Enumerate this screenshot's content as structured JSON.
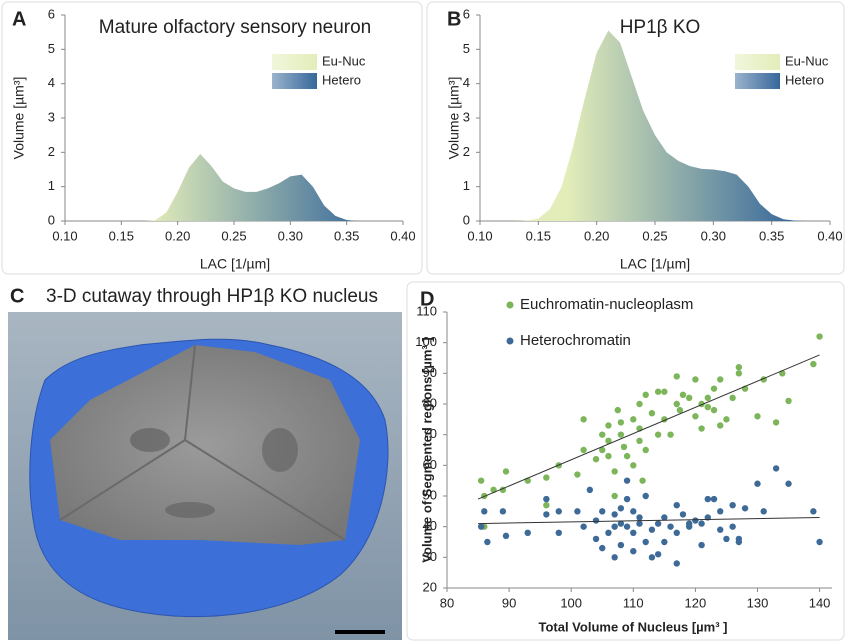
{
  "chart_data": [
    {
      "type": "area",
      "label": "A",
      "title": "Mature olfactory sensory neuron",
      "xlabel": "LAC [1/µm]",
      "ylabel": "Volume [µm³]",
      "x": [
        0.1,
        0.11,
        0.12,
        0.13,
        0.14,
        0.15,
        0.16,
        0.17,
        0.18,
        0.19,
        0.2,
        0.21,
        0.22,
        0.23,
        0.24,
        0.25,
        0.26,
        0.27,
        0.28,
        0.29,
        0.3,
        0.31,
        0.32,
        0.33,
        0.34,
        0.35,
        0.36,
        0.37,
        0.38,
        0.39,
        0.4
      ],
      "values": [
        0,
        0,
        0,
        0,
        0,
        0,
        0,
        0,
        0.02,
        0.25,
        0.85,
        1.55,
        1.95,
        1.6,
        1.15,
        0.95,
        0.85,
        0.85,
        0.95,
        1.1,
        1.3,
        1.35,
        1.0,
        0.45,
        0.15,
        0.03,
        0,
        0,
        0,
        0,
        0
      ],
      "legend": [
        "Eu-Nuc",
        "Hetero"
      ],
      "gradient": [
        "#e2edb9",
        "#36679a"
      ],
      "xlim": [
        0.1,
        0.4
      ],
      "ylim": [
        0,
        6
      ],
      "xticks": [
        {
          "value": 0.1,
          "label": "0.10"
        },
        {
          "value": 0.15,
          "label": "0.15"
        },
        {
          "value": 0.2,
          "label": "0.20"
        },
        {
          "value": 0.25,
          "label": "0.25"
        },
        {
          "value": 0.3,
          "label": "0.30"
        },
        {
          "value": 0.35,
          "label": "0.35"
        },
        {
          "value": 0.4,
          "label": "0.40"
        }
      ],
      "yticks": [
        0,
        1,
        2,
        3,
        4,
        5,
        6
      ]
    },
    {
      "type": "area",
      "label": "B",
      "title": "HP1β KO",
      "xlabel": "LAC [1/µm]",
      "ylabel": "Volume [µm³]",
      "x": [
        0.1,
        0.11,
        0.12,
        0.13,
        0.14,
        0.15,
        0.16,
        0.17,
        0.18,
        0.19,
        0.2,
        0.21,
        0.22,
        0.23,
        0.24,
        0.25,
        0.26,
        0.27,
        0.28,
        0.29,
        0.3,
        0.31,
        0.32,
        0.33,
        0.34,
        0.35,
        0.36,
        0.37,
        0.38,
        0.39,
        0.4
      ],
      "values": [
        0,
        0,
        0,
        0,
        0.01,
        0.07,
        0.35,
        1.0,
        2.2,
        3.6,
        4.9,
        5.55,
        5.2,
        4.2,
        3.2,
        2.5,
        2.0,
        1.75,
        1.6,
        1.52,
        1.5,
        1.45,
        1.35,
        1.0,
        0.5,
        0.2,
        0.05,
        0.01,
        0,
        0,
        0
      ],
      "legend": [
        "Eu-Nuc",
        "Hetero"
      ],
      "gradient": [
        "#e2edb9",
        "#36679a"
      ],
      "xlim": [
        0.1,
        0.4
      ],
      "ylim": [
        0,
        6
      ],
      "xticks": [
        {
          "value": 0.1,
          "label": "0.10"
        },
        {
          "value": 0.15,
          "label": "0.15"
        },
        {
          "value": 0.2,
          "label": "0.20"
        },
        {
          "value": 0.25,
          "label": "0.25"
        },
        {
          "value": 0.3,
          "label": "0.30"
        },
        {
          "value": 0.35,
          "label": "0.35"
        },
        {
          "value": 0.4,
          "label": "0.40"
        }
      ],
      "yticks": [
        0,
        1,
        2,
        3,
        4,
        5,
        6
      ]
    },
    {
      "type": "scatter",
      "label": "D",
      "xlabel": "Total Volume of Nucleus [µm³ ]",
      "ylabel": "Volume of Segmented regions [µm³ ]",
      "series": [
        {
          "name": "Euchromatin-nucleoplasm",
          "color": "#7cb55a",
          "x": [
            85.5,
            86,
            86,
            87.5,
            89.5,
            89,
            93,
            96,
            96,
            98,
            101,
            102,
            102,
            104,
            105,
            105,
            106,
            106,
            106,
            107,
            107,
            107.5,
            108,
            108,
            108.5,
            109,
            110,
            110,
            111,
            111,
            111,
            111.5,
            112,
            112,
            113,
            114,
            114,
            115,
            115,
            116,
            117,
            117,
            117.5,
            118,
            119,
            120,
            120,
            121,
            121,
            122,
            122,
            123,
            123,
            124,
            124,
            125,
            126,
            127,
            127,
            128,
            130,
            131,
            133,
            134,
            135,
            139,
            140
          ],
          "values": [
            55,
            40,
            50,
            52,
            58,
            52,
            55,
            47,
            56,
            60,
            57,
            75,
            65,
            62,
            70,
            65,
            63,
            68,
            73,
            58,
            50,
            78,
            70,
            74,
            66,
            63,
            60,
            75,
            72,
            68,
            80,
            55,
            83,
            65,
            77,
            84,
            70,
            84,
            75,
            70,
            89,
            80,
            78,
            83,
            82,
            88,
            76,
            72,
            80,
            79,
            82,
            85,
            78,
            88,
            73,
            75,
            82,
            92,
            90,
            85,
            76,
            88,
            74,
            90,
            81,
            93,
            102
          ]
        },
        {
          "name": "Heterochromatin",
          "color": "#3e6a98",
          "x": [
            85.5,
            86,
            86.5,
            89,
            89.5,
            93,
            96,
            96,
            98,
            98,
            101,
            102,
            103,
            104,
            104,
            105,
            105,
            106,
            107,
            107,
            107,
            108,
            108,
            108,
            109,
            109,
            109,
            110,
            110,
            110,
            111,
            111,
            112,
            112,
            113,
            113,
            114,
            114,
            115,
            115,
            116,
            117,
            117,
            117,
            118,
            119,
            119,
            120,
            121,
            121,
            122,
            122,
            123,
            124,
            124,
            125,
            126,
            126,
            127,
            127,
            128,
            130,
            131,
            133,
            135,
            139,
            140
          ],
          "values": [
            40,
            45,
            35,
            45,
            37,
            38,
            49,
            44,
            45,
            38,
            45,
            40,
            52,
            42,
            36,
            45,
            33,
            38,
            44,
            40,
            30,
            46,
            41,
            34,
            55,
            49,
            40,
            38,
            32,
            45,
            43,
            41,
            35,
            50,
            39,
            30,
            41,
            31,
            43,
            35,
            40,
            47,
            38,
            28,
            44,
            40,
            41,
            42,
            41,
            34,
            49,
            43,
            49,
            39,
            45,
            36,
            47,
            40,
            36,
            35,
            46,
            54,
            45,
            59,
            54,
            45,
            35
          ]
        }
      ],
      "trendlines": [
        {
          "x": [
            85,
            140
          ],
          "values": [
            49,
            96
          ]
        },
        {
          "x": [
            85,
            140
          ],
          "values": [
            41,
            43
          ]
        }
      ],
      "trendline_color": "#333333",
      "xlim": [
        80,
        142
      ],
      "ylim": [
        20,
        110
      ],
      "xticks": [
        80,
        90,
        100,
        110,
        120,
        130,
        140
      ],
      "yticks": [
        20,
        30,
        40,
        50,
        60,
        70,
        80,
        90,
        100,
        110
      ]
    }
  ],
  "image_panel": {
    "label": "C",
    "title": "3-D cutaway through HP1β KO nucleus"
  }
}
